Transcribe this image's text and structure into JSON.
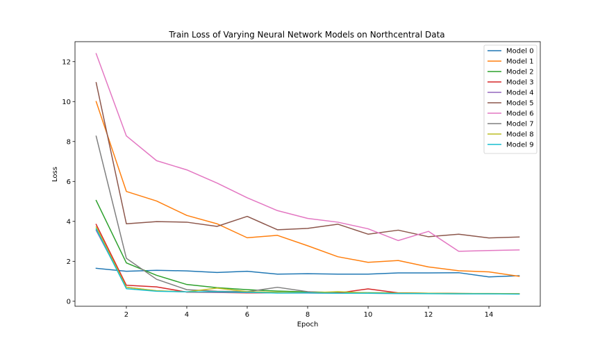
{
  "chart_data": {
    "type": "line",
    "title": "Train Loss of Varying Neural Network Models on Northcentral Data",
    "xlabel": "Epoch",
    "ylabel": "Loss",
    "x": [
      1,
      2,
      3,
      4,
      5,
      6,
      7,
      8,
      9,
      10,
      11,
      12,
      13,
      14,
      15
    ],
    "xlim": [
      0.3,
      15.7
    ],
    "ylim": [
      -0.25,
      13.0
    ],
    "xticks": [
      2,
      4,
      6,
      8,
      10,
      12,
      14
    ],
    "yticks": [
      0,
      2,
      4,
      6,
      8,
      10,
      12
    ],
    "grid": false,
    "legend_position": "upper right",
    "series": [
      {
        "name": "Model 0",
        "color": "#1f77b4",
        "values": [
          1.65,
          1.5,
          1.55,
          1.52,
          1.44,
          1.5,
          1.36,
          1.38,
          1.36,
          1.36,
          1.42,
          1.42,
          1.43,
          1.22,
          1.28
        ]
      },
      {
        "name": "Model 1",
        "color": "#ff7f0e",
        "values": [
          10.0,
          5.5,
          5.02,
          4.3,
          3.88,
          3.18,
          3.3,
          2.78,
          2.23,
          1.95,
          2.04,
          1.72,
          1.53,
          1.47,
          1.25
        ]
      },
      {
        "name": "Model 2",
        "color": "#2ca02c",
        "values": [
          5.05,
          1.92,
          1.3,
          0.84,
          0.68,
          0.58,
          0.51,
          0.47,
          0.44,
          0.43,
          0.42,
          0.4,
          0.39,
          0.38,
          0.37
        ]
      },
      {
        "name": "Model 3",
        "color": "#d62728",
        "values": [
          3.85,
          0.8,
          0.72,
          0.46,
          0.44,
          0.42,
          0.42,
          0.42,
          0.41,
          0.62,
          0.42,
          0.4,
          0.39,
          0.38,
          0.37
        ]
      },
      {
        "name": "Model 4",
        "color": "#9467bd",
        "values": [
          3.55,
          0.7,
          0.52,
          0.47,
          0.45,
          0.44,
          0.42,
          0.41,
          0.4,
          0.4,
          0.39,
          0.39,
          0.38,
          0.38,
          0.37
        ]
      },
      {
        "name": "Model 5",
        "color": "#8c564b",
        "values": [
          10.95,
          3.88,
          3.99,
          3.96,
          3.75,
          4.25,
          3.58,
          3.65,
          3.86,
          3.36,
          3.56,
          3.23,
          3.36,
          3.17,
          3.22
        ]
      },
      {
        "name": "Model 6",
        "color": "#e377c2",
        "values": [
          12.4,
          8.28,
          7.04,
          6.58,
          5.92,
          5.18,
          4.54,
          4.15,
          3.96,
          3.63,
          3.04,
          3.5,
          2.5,
          2.54,
          2.57
        ]
      },
      {
        "name": "Model 7",
        "color": "#7f7f7f",
        "values": [
          8.27,
          2.15,
          1.1,
          0.58,
          0.5,
          0.48,
          0.7,
          0.48,
          0.4,
          0.4,
          0.4,
          0.39,
          0.38,
          0.38,
          0.37
        ]
      },
      {
        "name": "Model 8",
        "color": "#bcbd22",
        "values": [
          3.72,
          0.7,
          0.53,
          0.47,
          0.66,
          0.48,
          0.45,
          0.42,
          0.48,
          0.42,
          0.41,
          0.4,
          0.39,
          0.39,
          0.38
        ]
      },
      {
        "name": "Model 9",
        "color": "#17becf",
        "values": [
          3.62,
          0.63,
          0.5,
          0.47,
          0.47,
          0.45,
          0.41,
          0.42,
          0.4,
          0.4,
          0.39,
          0.38,
          0.37,
          0.37,
          0.36
        ]
      }
    ]
  }
}
